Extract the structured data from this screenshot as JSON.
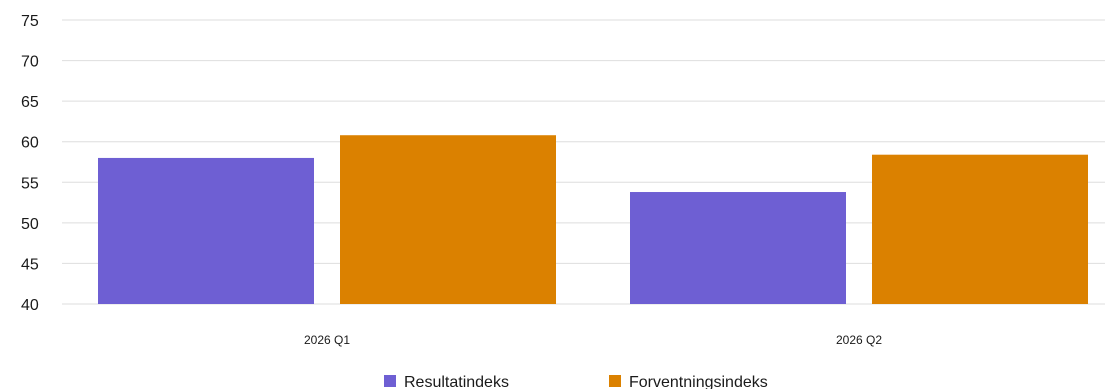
{
  "chart_data": {
    "type": "bar",
    "categories": [
      "2026 Q1",
      "2026 Q2"
    ],
    "series": [
      {
        "name": "Resultatindeks",
        "values": [
          58.0,
          53.8
        ],
        "color": "#6e5fd3"
      },
      {
        "name": "Forventningsindeks",
        "values": [
          60.8,
          58.4
        ],
        "color": "#db8100"
      }
    ],
    "title": "",
    "xlabel": "",
    "ylabel": "",
    "ylim": [
      40,
      75
    ],
    "yticks": [
      "40",
      "45",
      "50",
      "55",
      "60",
      "65",
      "70",
      "75"
    ],
    "grid": true,
    "legend": "bottom-center"
  }
}
